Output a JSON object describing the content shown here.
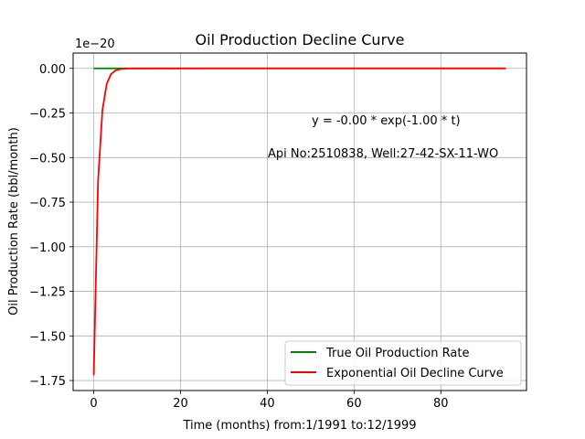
{
  "chart_data": {
    "type": "line",
    "title": "Oil Production Decline Curve",
    "xlabel": "Time (months) from:1/1991 to:12/1999",
    "ylabel": "Oil Production Rate (bbl/month)",
    "offset_text": "1e−20",
    "xlim": [
      -4.75,
      99.75
    ],
    "ylim": [
      -1.806,
      0.086
    ],
    "x_ticks": [
      0,
      20,
      40,
      60,
      80
    ],
    "x_tick_labels": [
      "0",
      "20",
      "40",
      "60",
      "80"
    ],
    "y_ticks": [
      0.0,
      -0.25,
      -0.5,
      -0.75,
      -1.0,
      -1.25,
      -1.5,
      -1.75
    ],
    "y_tick_labels": [
      "0.00",
      "−0.25",
      "−0.50",
      "−0.75",
      "−1.00",
      "−1.25",
      "−1.50",
      "−1.75"
    ],
    "grid": true,
    "legend_position": "lower-right",
    "annotations": [
      {
        "text": "y = -0.00 * exp(-1.00 * t)",
        "x": 50,
        "y": -0.3
      },
      {
        "text": "Api No:2510838, Well:27-42-SX-11-WO",
        "x": 40,
        "y": -0.48
      }
    ],
    "series": [
      {
        "name": "True Oil Production Rate",
        "color": "#008000",
        "x": [
          0,
          95
        ],
        "y": [
          0,
          0
        ]
      },
      {
        "name": "Exponential Oil Decline Curve",
        "color": "#ff0000",
        "x": [
          0,
          1,
          2,
          3,
          4,
          5,
          6,
          7,
          8,
          10,
          95
        ],
        "y": [
          -1.72,
          -0.633,
          -0.233,
          -0.0857,
          -0.0315,
          -0.0116,
          -0.00427,
          -0.00157,
          -0.000577,
          -7.81e-05,
          0
        ]
      }
    ]
  }
}
